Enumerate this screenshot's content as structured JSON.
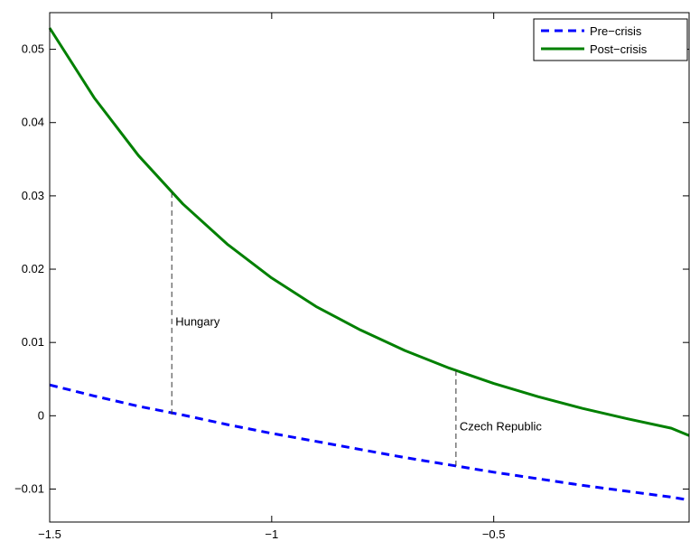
{
  "chart_data": {
    "type": "line",
    "xlim": [
      -1.5,
      -0.06
    ],
    "ylim": [
      -0.0145,
      0.055
    ],
    "xticks": [
      -1.5,
      -1,
      -0.5
    ],
    "xtick_labels": [
      "−1.5",
      "−1",
      "−0.5"
    ],
    "yticks": [
      -0.01,
      0,
      0.01,
      0.02,
      0.03,
      0.04,
      0.05
    ],
    "ytick_labels": [
      "−0.01",
      "0",
      "0.01",
      "0.02",
      "0.03",
      "0.04",
      "0.05"
    ],
    "grid": false,
    "legend_position": "top-right",
    "series": [
      {
        "name": "Pre−crisis",
        "color": "#0000ff",
        "style": "dashed",
        "x": [
          -1.5,
          -1.4,
          -1.3,
          -1.2,
          -1.1,
          -1.0,
          -0.9,
          -0.8,
          -0.7,
          -0.6,
          -0.5,
          -0.4,
          -0.3,
          -0.2,
          -0.1,
          -0.06
        ],
        "y": [
          0.0042,
          0.0027,
          0.0013,
          0.0001,
          -0.0012,
          -0.0024,
          -0.0035,
          -0.0046,
          -0.0057,
          -0.0067,
          -0.0077,
          -0.0086,
          -0.0095,
          -0.0103,
          -0.0111,
          -0.0115
        ]
      },
      {
        "name": "Post−crisis",
        "color": "#008000",
        "style": "solid",
        "x": [
          -1.5,
          -1.4,
          -1.3,
          -1.2,
          -1.1,
          -1.0,
          -0.9,
          -0.8,
          -0.7,
          -0.6,
          -0.5,
          -0.4,
          -0.3,
          -0.2,
          -0.1,
          -0.06
        ],
        "y": [
          0.0529,
          0.0434,
          0.0355,
          0.0289,
          0.0234,
          0.0188,
          0.0149,
          0.0117,
          0.0089,
          0.0065,
          0.0044,
          0.0026,
          0.001,
          -0.0004,
          -0.0017,
          -0.0027
        ]
      }
    ],
    "annotations": [
      {
        "label": "Hungary",
        "x": -1.225,
        "y_top": 0.0305,
        "y_bottom": 0.0,
        "label_y": 0.0128
      },
      {
        "label": "Czech Republic",
        "x": -0.585,
        "y_top": 0.0062,
        "y_bottom": -0.0071,
        "label_y": -0.0015
      }
    ]
  }
}
